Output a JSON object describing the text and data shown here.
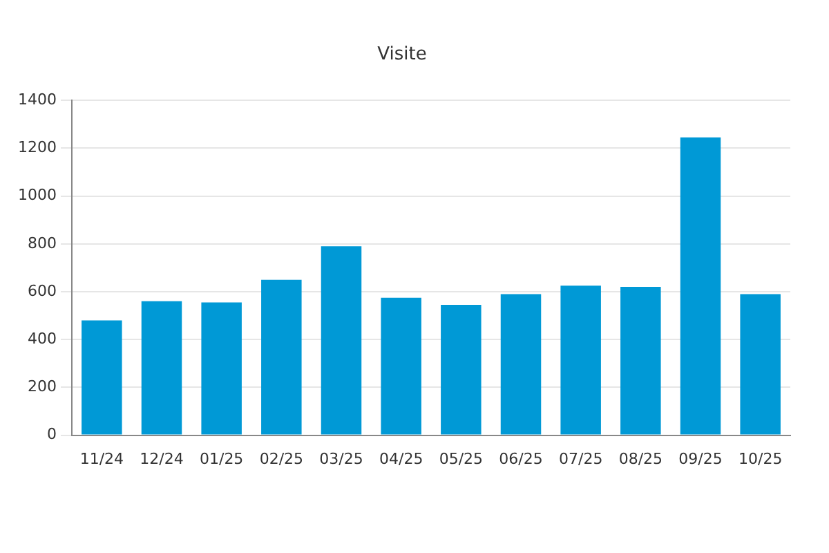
{
  "chart_data": {
    "type": "bar",
    "title": "Visite",
    "categories": [
      "11/24",
      "12/24",
      "01/25",
      "02/25",
      "03/25",
      "04/25",
      "05/25",
      "06/25",
      "07/25",
      "08/25",
      "09/25",
      "10/25"
    ],
    "values": [
      480,
      560,
      555,
      650,
      790,
      575,
      545,
      590,
      625,
      620,
      1245,
      590
    ],
    "color": "#0099d6",
    "ylim": [
      0,
      1400
    ],
    "yticks": [
      0,
      200,
      400,
      600,
      800,
      1000,
      1200,
      1400
    ],
    "grid": "y",
    "legend": false
  }
}
